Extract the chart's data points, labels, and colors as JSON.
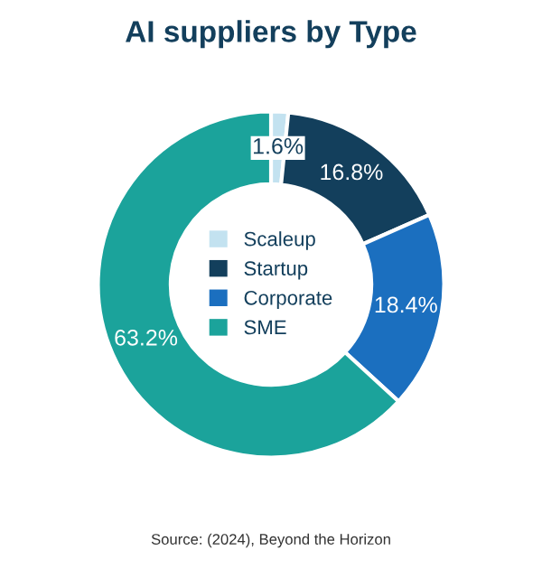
{
  "chart_data": {
    "type": "donut",
    "title": "AI suppliers by Type",
    "categories": [
      "Scaleup",
      "Startup",
      "Corporate",
      "SME"
    ],
    "values": [
      1.6,
      16.8,
      18.4,
      63.2
    ],
    "colors": [
      "#c3e2f0",
      "#133f5c",
      "#1b6fbf",
      "#1ba39b"
    ],
    "value_labels": [
      "1.6%",
      "16.8%",
      "18.4%",
      "63.2%"
    ],
    "legend": "center",
    "annotations": [
      "Source: (2024), Beyond the Horizon"
    ]
  }
}
